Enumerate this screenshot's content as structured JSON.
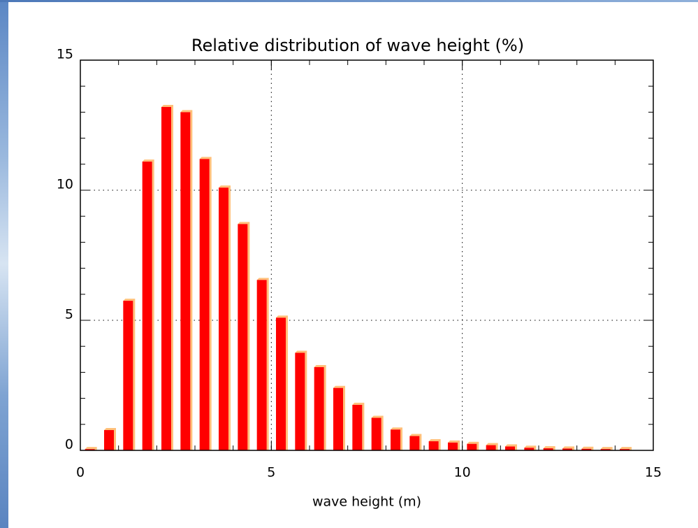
{
  "chart_data": {
    "type": "bar",
    "title": "Relative distribution of wave height (%)",
    "x_label": "wave height (m)",
    "x": [
      0.25,
      0.75,
      1.25,
      1.75,
      2.25,
      2.75,
      3.25,
      3.75,
      4.25,
      4.75,
      5.25,
      5.75,
      6.25,
      6.75,
      7.25,
      7.75,
      8.25,
      8.75,
      9.25,
      9.75,
      10.25,
      10.75,
      11.25,
      11.75,
      12.25,
      12.75,
      13.25,
      13.75,
      14.25
    ],
    "values": [
      0.05,
      0.78,
      5.75,
      11.1,
      13.2,
      13.0,
      11.2,
      10.1,
      8.7,
      6.55,
      5.1,
      3.75,
      3.2,
      2.4,
      1.75,
      1.25,
      0.8,
      0.55,
      0.35,
      0.3,
      0.25,
      0.2,
      0.15,
      0.1,
      0.08,
      0.07,
      0.06,
      0.05,
      0.05
    ],
    "color": "#ff0000",
    "shadow_color": "#ffc07a",
    "xlim": [
      0,
      15
    ],
    "xticks": [
      0,
      5,
      10,
      15
    ],
    "ylim": [
      0,
      15
    ],
    "yticks": [
      0,
      5,
      10,
      15
    ],
    "minor_tick_step": 1,
    "grid": true
  }
}
